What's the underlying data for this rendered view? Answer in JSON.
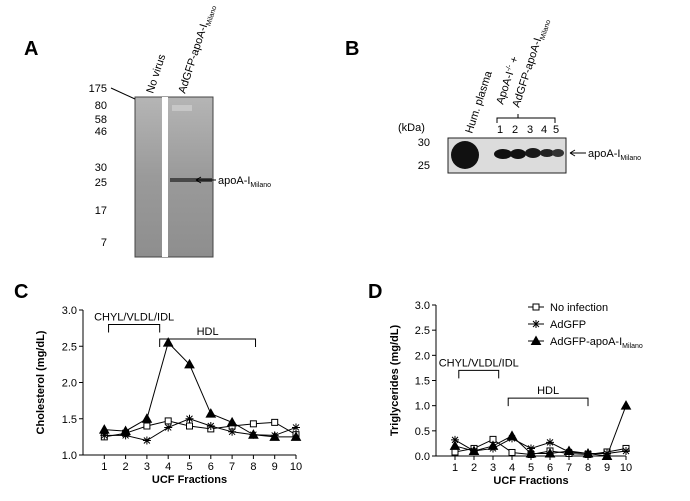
{
  "panel_labels": [
    "A",
    "B",
    "C",
    "D"
  ],
  "blot_a": {
    "markers": [
      175,
      80,
      58,
      46,
      30,
      25,
      17,
      7
    ],
    "lane1": "No virus",
    "lane2": "AdGFP-apoA-I",
    "lane2_subscript": "Milano",
    "band_label": "apoA-I",
    "band_subscript": "Milano"
  },
  "blot_b": {
    "unit": "(kDa)",
    "markers": [
      30,
      25
    ],
    "lane1": "Hum. plasma",
    "group_label": "ApoA-I",
    "group_superscript": "-/-",
    "group_suffix": " +",
    "group_label2": "AdGFP-apoA-I",
    "group_subscript2": "Milano",
    "lane_numbers": [
      1,
      2,
      3,
      4,
      5
    ],
    "band_label": "apoA-I",
    "band_subscript": "Milano"
  },
  "chart_data": [
    {
      "type": "line",
      "xlabel": "UCF Fractions",
      "ylabel": "Cholesterol (mg/dL)",
      "x": [
        1,
        2,
        3,
        4,
        5,
        6,
        7,
        8,
        9,
        10
      ],
      "xlim": [
        0,
        10
      ],
      "xticks": [
        1,
        2,
        3,
        4,
        5,
        6,
        7,
        8,
        9,
        10
      ],
      "ylim": [
        1,
        3
      ],
      "yticks": [
        {
          "value": 1,
          "label": "1.0"
        },
        {
          "value": 1.5,
          "label": "1.5"
        },
        {
          "value": 2,
          "label": "2.0"
        },
        {
          "value": 2.5,
          "label": "2.5"
        },
        {
          "value": 3,
          "label": "3.0"
        }
      ],
      "legend": false,
      "annotations": [
        {
          "text": "CHYL/VLDL/IDL",
          "x": [
            1.2,
            3.6
          ],
          "y": 2.8
        },
        {
          "text": "HDL",
          "x": [
            3.6,
            8.1
          ],
          "y": 2.6
        }
      ],
      "series": [
        {
          "name": "No infection",
          "marker": "square",
          "color": "#000000",
          "values": [
            1.25,
            1.3,
            1.4,
            1.47,
            1.4,
            1.36,
            1.4,
            1.43,
            1.45,
            1.28
          ]
        },
        {
          "name": "AdGFP",
          "marker": "star",
          "color": "#000000",
          "values": [
            1.27,
            1.27,
            1.2,
            1.38,
            1.5,
            1.4,
            1.32,
            1.28,
            1.27,
            1.38
          ]
        },
        {
          "name": "AdGFP-apoA-I",
          "name_subscript": "Milano",
          "marker": "triangle",
          "color": "#000000",
          "values": [
            1.35,
            1.33,
            1.5,
            2.55,
            2.25,
            1.57,
            1.45,
            1.28,
            1.25,
            1.25
          ]
        }
      ]
    },
    {
      "type": "line",
      "xlabel": "UCF Fractions",
      "ylabel": "Triglycerides (mg/dL)",
      "x": [
        1,
        2,
        3,
        4,
        5,
        6,
        7,
        8,
        9,
        10
      ],
      "xlim": [
        0,
        10
      ],
      "xticks": [
        1,
        2,
        3,
        4,
        5,
        6,
        7,
        8,
        9,
        10
      ],
      "ylim": [
        0,
        3
      ],
      "yticks": [
        {
          "value": 0,
          "label": "0.0"
        },
        {
          "value": 0.5,
          "label": "0.5"
        },
        {
          "value": 1,
          "label": "1.0"
        },
        {
          "value": 1.5,
          "label": "1.5"
        },
        {
          "value": 2,
          "label": "2.0"
        },
        {
          "value": 2.5,
          "label": "2.5"
        },
        {
          "value": 3,
          "label": "3.0"
        }
      ],
      "legend": true,
      "legend_position": "upper right",
      "annotations": [
        {
          "text": "CHYL/VLDL/IDL",
          "x": [
            1.2,
            3.3
          ],
          "y": 1.7
        },
        {
          "text": "HDL",
          "x": [
            3.8,
            8
          ],
          "y": 1.15
        }
      ],
      "series": [
        {
          "name": "No infection",
          "marker": "square",
          "color": "#000000",
          "values": [
            0.08,
            0.15,
            0.33,
            0.07,
            0.03,
            0.1,
            0.05,
            0.03,
            0.08,
            0.15
          ]
        },
        {
          "name": "AdGFP",
          "marker": "star",
          "color": "#000000",
          "values": [
            0.32,
            0.1,
            0.15,
            0.35,
            0.15,
            0.27,
            0.08,
            0.05,
            0.05,
            0.1
          ]
        },
        {
          "name": "AdGFP-apoA-I",
          "name_subscript": "Milano",
          "marker": "triangle",
          "color": "#000000",
          "values": [
            0.2,
            0.1,
            0.2,
            0.4,
            0.05,
            0.05,
            0.1,
            0.05,
            0,
            1
          ]
        }
      ]
    }
  ]
}
